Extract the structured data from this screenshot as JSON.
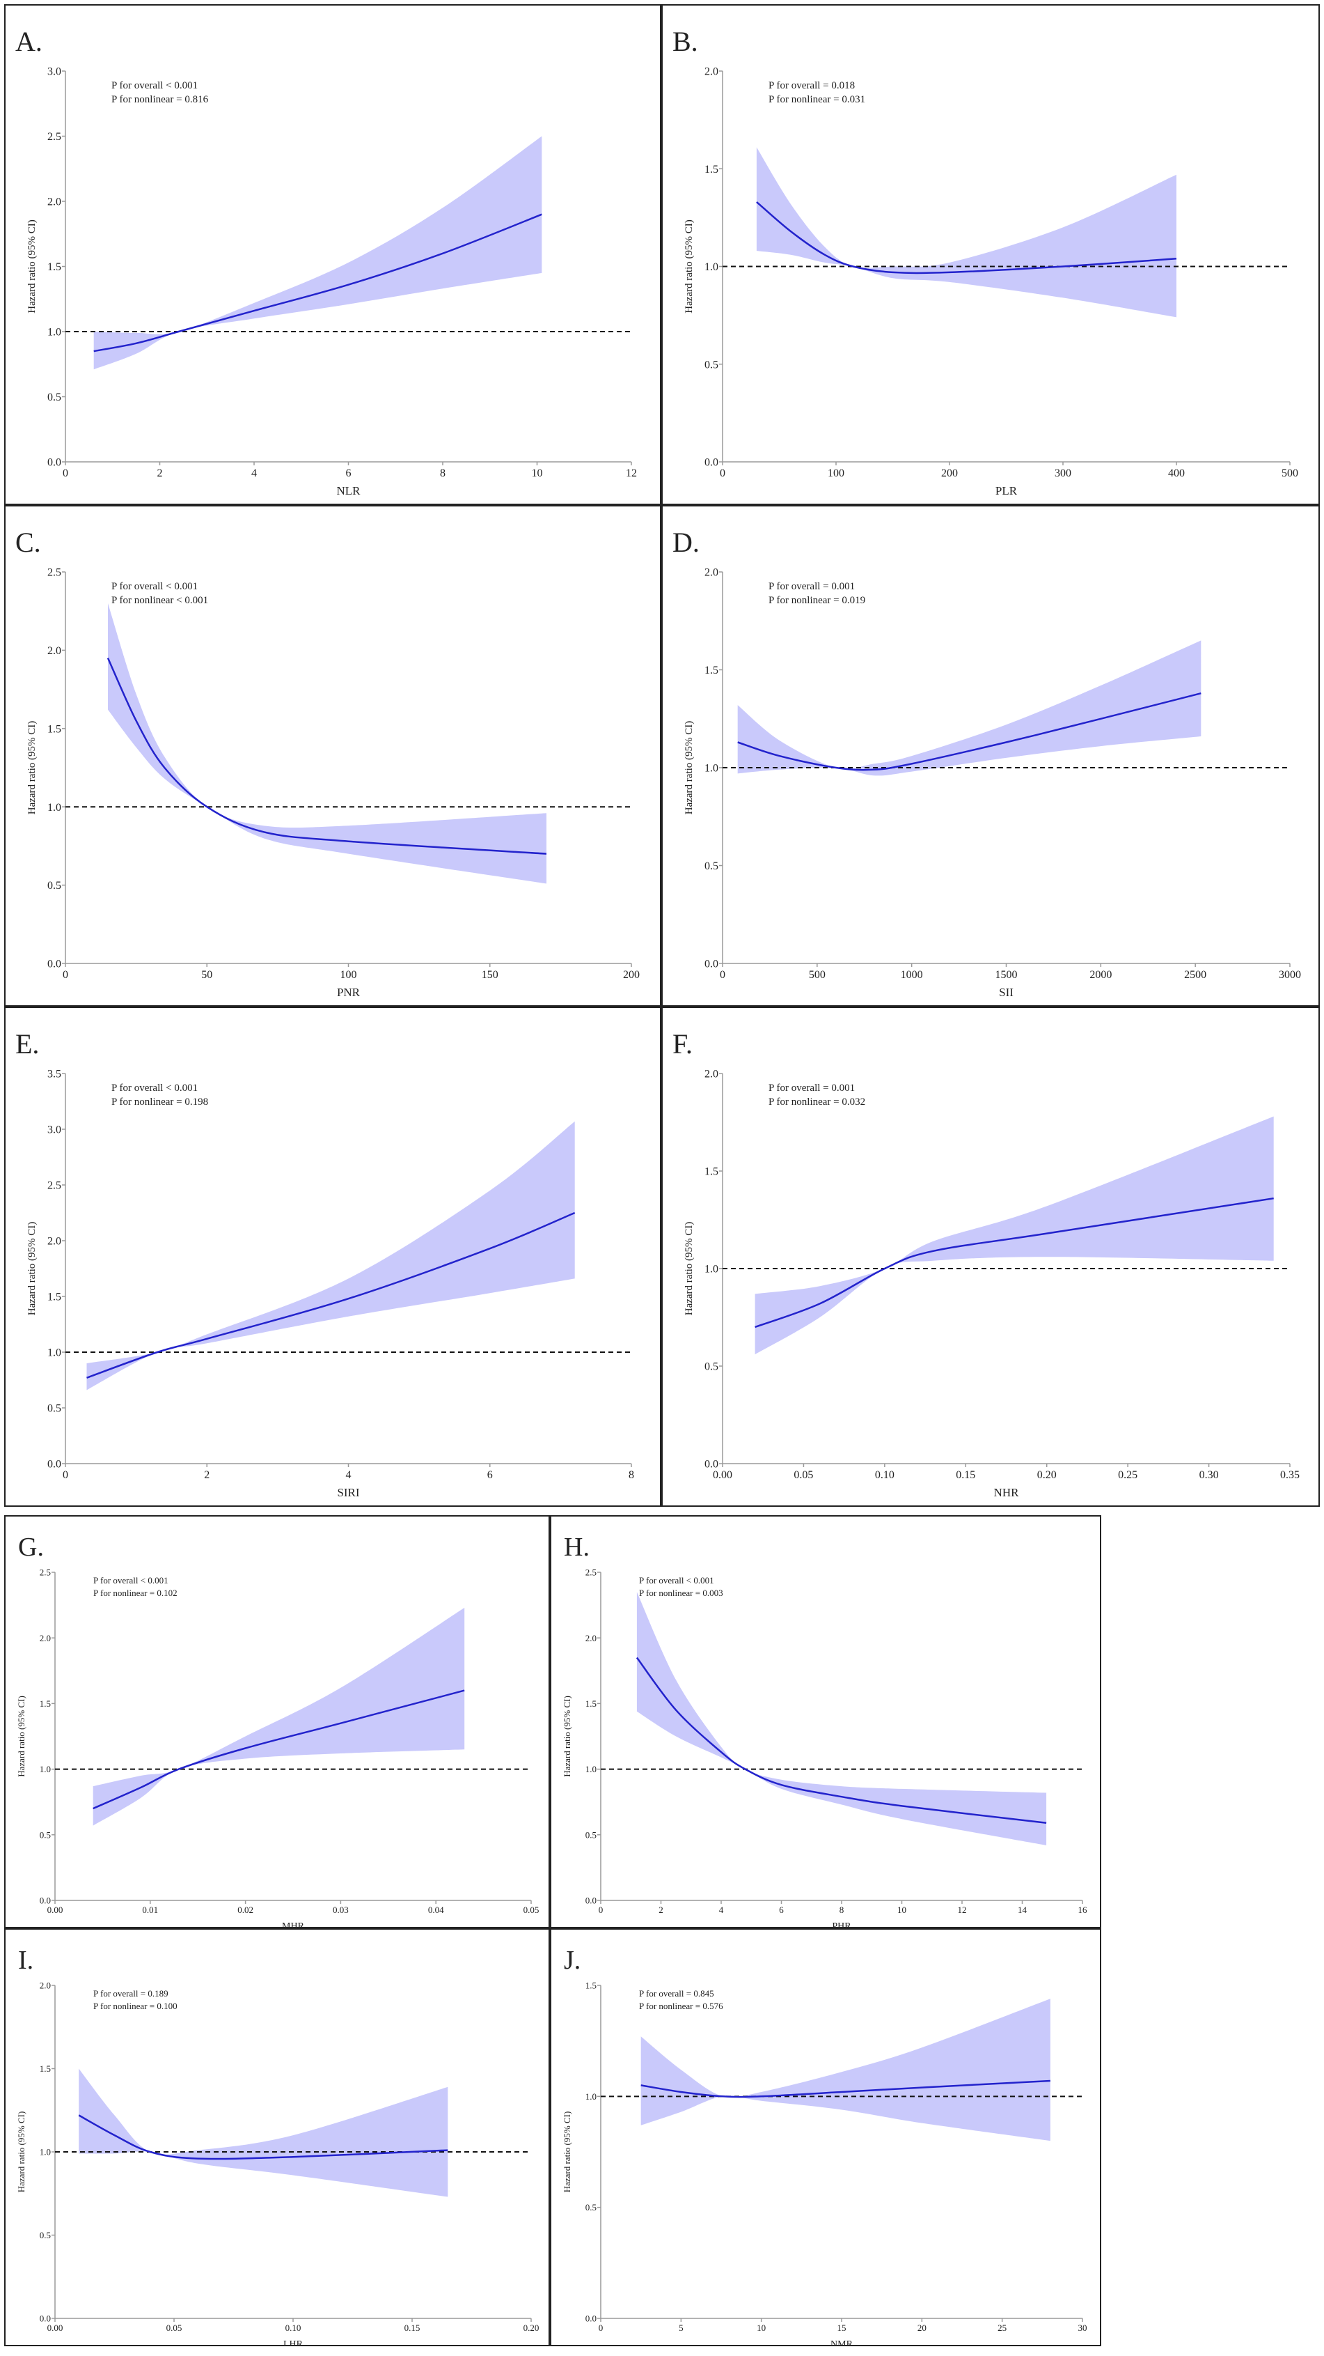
{
  "chart_data": [
    {
      "type": "line",
      "panel": "A.",
      "xlabel": "NLR",
      "ylabel": "Hazard ratio (95% CI)",
      "p_overall": "P for overall < 0.001",
      "p_nonlinear": "P for nonlinear = 0.816",
      "xlim": [
        0,
        12
      ],
      "ylim": [
        0,
        3
      ],
      "x_ticks": [
        "0",
        "2",
        "4",
        "6",
        "8",
        "10",
        "12"
      ],
      "y_ticks": [
        "0.0",
        "0.5",
        "1.0",
        "1.5",
        "2.0",
        "2.5",
        "3.0"
      ],
      "reference_line": 1.0,
      "points": [
        [
          0.6,
          0.85,
          0.71,
          1.0
        ],
        [
          1.5,
          0.91,
          0.83,
          0.99
        ],
        [
          2.4,
          1.0,
          1.0,
          1.0
        ],
        [
          4,
          1.16,
          1.1,
          1.22
        ],
        [
          6,
          1.36,
          1.21,
          1.53
        ],
        [
          8,
          1.6,
          1.33,
          1.95
        ],
        [
          10.1,
          1.9,
          1.45,
          2.5
        ]
      ]
    },
    {
      "type": "line",
      "panel": "B.",
      "xlabel": "PLR",
      "ylabel": "Hazard ratio (95% CI)",
      "p_overall": "P for overall = 0.018",
      "p_nonlinear": "P for nonlinear = 0.031",
      "xlim": [
        0,
        500
      ],
      "ylim": [
        0,
        2
      ],
      "x_ticks": [
        "0",
        "100",
        "200",
        "300",
        "400",
        "500"
      ],
      "y_ticks": [
        "0.0",
        "0.5",
        "1.0",
        "1.5",
        "2.0"
      ],
      "reference_line": 1.0,
      "points": [
        [
          30,
          1.33,
          1.08,
          1.61
        ],
        [
          60,
          1.18,
          1.06,
          1.32
        ],
        [
          90,
          1.06,
          1.02,
          1.1
        ],
        [
          115,
          1.0,
          1.0,
          1.0
        ],
        [
          150,
          0.97,
          0.94,
          1.0
        ],
        [
          200,
          0.97,
          0.92,
          1.02
        ],
        [
          300,
          1.0,
          0.84,
          1.2
        ],
        [
          400,
          1.04,
          0.74,
          1.47
        ]
      ]
    },
    {
      "type": "line",
      "panel": "C.",
      "xlabel": "PNR",
      "ylabel": "Hazard ratio (95% CI)",
      "p_overall": "P for overall < 0.001",
      "p_nonlinear": "P for nonlinear < 0.001",
      "xlim": [
        0,
        200
      ],
      "ylim": [
        0,
        2.5
      ],
      "x_ticks": [
        "0",
        "50",
        "100",
        "150",
        "200"
      ],
      "y_ticks": [
        "0.0",
        "0.5",
        "1.0",
        "1.5",
        "2.0",
        "2.5"
      ],
      "reference_line": 1.0,
      "points": [
        [
          15,
          1.95,
          1.62,
          2.3
        ],
        [
          25,
          1.55,
          1.38,
          1.72
        ],
        [
          35,
          1.25,
          1.18,
          1.32
        ],
        [
          50,
          1.0,
          1.0,
          1.0
        ],
        [
          70,
          0.84,
          0.8,
          0.88
        ],
        [
          100,
          0.78,
          0.7,
          0.88
        ],
        [
          170,
          0.7,
          0.51,
          0.96
        ]
      ]
    },
    {
      "type": "line",
      "panel": "D.",
      "xlabel": "SII",
      "ylabel": "Hazard ratio (95% CI)",
      "p_overall": "P for overall = 0.001",
      "p_nonlinear": "P for nonlinear = 0.019",
      "xlim": [
        0,
        3000
      ],
      "ylim": [
        0,
        2
      ],
      "x_ticks": [
        "0",
        "500",
        "1000",
        "1500",
        "2000",
        "2500",
        "3000"
      ],
      "y_ticks": [
        "0.0",
        "0.5",
        "1.0",
        "1.5",
        "2.0"
      ],
      "reference_line": 1.0,
      "points": [
        [
          80,
          1.13,
          0.97,
          1.32
        ],
        [
          300,
          1.06,
          0.99,
          1.14
        ],
        [
          600,
          1.0,
          1.0,
          1.0
        ],
        [
          800,
          0.99,
          0.96,
          1.02
        ],
        [
          1000,
          1.02,
          0.98,
          1.06
        ],
        [
          1500,
          1.13,
          1.05,
          1.22
        ],
        [
          2000,
          1.25,
          1.11,
          1.42
        ],
        [
          2530,
          1.38,
          1.16,
          1.65
        ]
      ]
    },
    {
      "type": "line",
      "panel": "E.",
      "xlabel": "SIRI",
      "ylabel": "Hazard ratio (95% CI)",
      "p_overall": "P for overall < 0.001",
      "p_nonlinear": "P for nonlinear = 0.198",
      "xlim": [
        0,
        8
      ],
      "ylim": [
        0,
        3.5
      ],
      "x_ticks": [
        "0",
        "2",
        "4",
        "6",
        "8"
      ],
      "y_ticks": [
        "0.0",
        "0.5",
        "1.0",
        "1.5",
        "2.0",
        "2.5",
        "3.0",
        "3.5"
      ],
      "reference_line": 1.0,
      "points": [
        [
          0.3,
          0.77,
          0.66,
          0.9
        ],
        [
          1.3,
          1.0,
          1.0,
          1.0
        ],
        [
          2,
          1.12,
          1.08,
          1.16
        ],
        [
          4,
          1.48,
          1.32,
          1.66
        ],
        [
          6,
          1.93,
          1.53,
          2.45
        ],
        [
          7.2,
          2.25,
          1.66,
          3.07
        ]
      ]
    },
    {
      "type": "line",
      "panel": "F.",
      "xlabel": "NHR",
      "ylabel": "Hazard ratio (95% CI)",
      "p_overall": "P for overall = 0.001",
      "p_nonlinear": "P for nonlinear = 0.032",
      "xlim": [
        0,
        0.35
      ],
      "ylim": [
        0,
        2
      ],
      "x_ticks": [
        "0.00",
        "0.05",
        "0.10",
        "0.15",
        "0.20",
        "0.25",
        "0.30",
        "0.35"
      ],
      "y_ticks": [
        "0.0",
        "0.5",
        "1.0",
        "1.5",
        "2.0"
      ],
      "reference_line": 1.0,
      "points": [
        [
          0.02,
          0.7,
          0.56,
          0.87
        ],
        [
          0.06,
          0.82,
          0.75,
          0.91
        ],
        [
          0.1,
          1.0,
          1.0,
          1.0
        ],
        [
          0.13,
          1.09,
          1.04,
          1.14
        ],
        [
          0.2,
          1.18,
          1.06,
          1.32
        ],
        [
          0.34,
          1.36,
          1.04,
          1.78
        ]
      ]
    },
    {
      "type": "line",
      "panel": "G.",
      "xlabel": "MHR",
      "ylabel": "Hazard ratio (95% CI)",
      "p_overall": "P for overall < 0.001",
      "p_nonlinear": "P for nonlinear = 0.102",
      "xlim": [
        0,
        0.05
      ],
      "ylim": [
        0,
        2.5
      ],
      "x_ticks": [
        "0.00",
        "0.01",
        "0.02",
        "0.03",
        "0.04",
        "0.05"
      ],
      "y_ticks": [
        "0.0",
        "0.5",
        "1.0",
        "1.5",
        "2.0",
        "2.5"
      ],
      "reference_line": 1.0,
      "points": [
        [
          0.004,
          0.7,
          0.57,
          0.87
        ],
        [
          0.009,
          0.86,
          0.78,
          0.95
        ],
        [
          0.013,
          1.0,
          1.0,
          1.0
        ],
        [
          0.02,
          1.16,
          1.08,
          1.25
        ],
        [
          0.03,
          1.35,
          1.12,
          1.62
        ],
        [
          0.043,
          1.6,
          1.15,
          2.23
        ]
      ]
    },
    {
      "type": "line",
      "panel": "H.",
      "xlabel": "PHR",
      "ylabel": "Hazard ratio (95% CI)",
      "p_overall": "P for overall < 0.001",
      "p_nonlinear": "P for nonlinear = 0.003",
      "xlim": [
        0,
        16
      ],
      "ylim": [
        0,
        2.5
      ],
      "x_ticks": [
        "0",
        "2",
        "4",
        "6",
        "8",
        "10",
        "12",
        "14",
        "16"
      ],
      "y_ticks": [
        "0.0",
        "0.5",
        "1.0",
        "1.5",
        "2.0",
        "2.5"
      ],
      "reference_line": 1.0,
      "points": [
        [
          1.2,
          1.85,
          1.44,
          2.35
        ],
        [
          2.5,
          1.45,
          1.25,
          1.68
        ],
        [
          4,
          1.13,
          1.09,
          1.17
        ],
        [
          4.8,
          1.0,
          1.0,
          1.0
        ],
        [
          6,
          0.88,
          0.85,
          0.92
        ],
        [
          8,
          0.79,
          0.73,
          0.87
        ],
        [
          10,
          0.72,
          0.62,
          0.85
        ],
        [
          14.8,
          0.59,
          0.42,
          0.82
        ]
      ]
    },
    {
      "type": "line",
      "panel": "I.",
      "xlabel": "LHR",
      "ylabel": "Hazard ratio (95% CI)",
      "p_overall": "P for overall = 0.189",
      "p_nonlinear": "P for nonlinear = 0.100",
      "xlim": [
        0,
        0.2
      ],
      "ylim": [
        0,
        2
      ],
      "x_ticks": [
        "0.00",
        "0.05",
        "0.10",
        "0.15",
        "0.20"
      ],
      "y_ticks": [
        "0.0",
        "0.5",
        "1.0",
        "1.5",
        "2.0"
      ],
      "reference_line": 1.0,
      "points": [
        [
          0.01,
          1.22,
          0.99,
          1.5
        ],
        [
          0.025,
          1.1,
          0.99,
          1.22
        ],
        [
          0.04,
          1.0,
          1.0,
          1.0
        ],
        [
          0.06,
          0.96,
          0.93,
          1.01
        ],
        [
          0.1,
          0.97,
          0.86,
          1.1
        ],
        [
          0.165,
          1.01,
          0.73,
          1.39
        ]
      ]
    },
    {
      "type": "line",
      "panel": "J.",
      "xlabel": "NMR",
      "ylabel": "Hazard ratio (95% CI)",
      "p_overall": "P for overall = 0.845",
      "p_nonlinear": "P for nonlinear = 0.576",
      "xlim": [
        0,
        30
      ],
      "ylim": [
        0,
        1.5
      ],
      "x_ticks": [
        "0",
        "5",
        "10",
        "15",
        "20",
        "25",
        "30"
      ],
      "y_ticks": [
        "0.0",
        "0.5",
        "1.0",
        "1.5"
      ],
      "reference_line": 1.0,
      "points": [
        [
          2.5,
          1.05,
          0.87,
          1.27
        ],
        [
          5,
          1.02,
          0.93,
          1.12
        ],
        [
          7.6,
          1.0,
          1.0,
          1.0
        ],
        [
          10,
          1.0,
          0.98,
          1.02
        ],
        [
          15,
          1.02,
          0.94,
          1.11
        ],
        [
          20,
          1.04,
          0.88,
          1.22
        ],
        [
          28,
          1.07,
          0.8,
          1.44
        ]
      ]
    }
  ],
  "colors": {
    "line": "#2323cc",
    "band": "#c9c9fb",
    "reference": "#111111",
    "axis": "#9a9a9a"
  }
}
